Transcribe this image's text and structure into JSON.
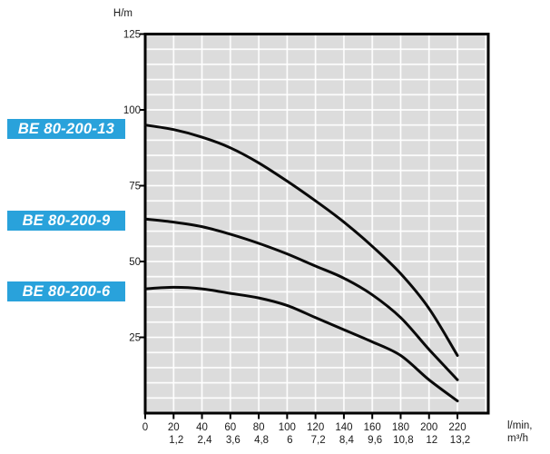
{
  "page": {
    "background": "#ffffff"
  },
  "chart_data": {
    "type": "line",
    "title": "",
    "ylabel": "H/m",
    "x_units_primary": "l/min,",
    "x_units_secondary": "m³/h",
    "x_values": [
      0,
      20,
      40,
      60,
      80,
      100,
      120,
      140,
      160,
      180,
      200,
      220
    ],
    "x_tick_labels_lmin": [
      "0",
      "20",
      "40",
      "60",
      "80",
      "100",
      "120",
      "140",
      "160",
      "180",
      "200",
      "220"
    ],
    "x_tick_labels_m3h": [
      "",
      "1,2",
      "2,4",
      "3,6",
      "4,8",
      "6",
      "7,2",
      "8,4",
      "9,6",
      "10,8",
      "12",
      "13,2"
    ],
    "y_ticks": [
      25,
      50,
      75,
      100,
      125
    ],
    "xlim": [
      0,
      242
    ],
    "ylim": [
      0,
      125
    ],
    "grid": {
      "cell_x_lmin": 20,
      "cell_y_m": 5
    },
    "legend_position": "left-outside",
    "series": [
      {
        "name": "BE 80-200-13",
        "values": [
          95,
          93.5,
          91,
          87.5,
          82.5,
          76.5,
          70,
          63,
          55,
          46,
          34.5,
          19
        ]
      },
      {
        "name": "BE 80-200-9",
        "values": [
          64,
          63,
          61.5,
          59,
          56,
          52.5,
          48.5,
          44.5,
          39,
          31.5,
          21,
          11
        ]
      },
      {
        "name": "BE 80-200-6",
        "values": [
          41,
          41.5,
          41,
          39.5,
          38,
          35.5,
          31.5,
          27.5,
          23.5,
          19,
          11,
          4
        ]
      }
    ]
  },
  "labels": [
    {
      "text": "BE 80-200-13"
    },
    {
      "text": "BE 80-200-9"
    },
    {
      "text": "BE 80-200-6"
    }
  ],
  "colors": {
    "label_bg": "#29a2db",
    "label_text": "#ffffff",
    "grid_fill": "#dcdcdc",
    "grid_line": "#ffffff",
    "axis": "#000000",
    "curve": "#0a0a0a",
    "tick_text": "#1a1a1a"
  }
}
